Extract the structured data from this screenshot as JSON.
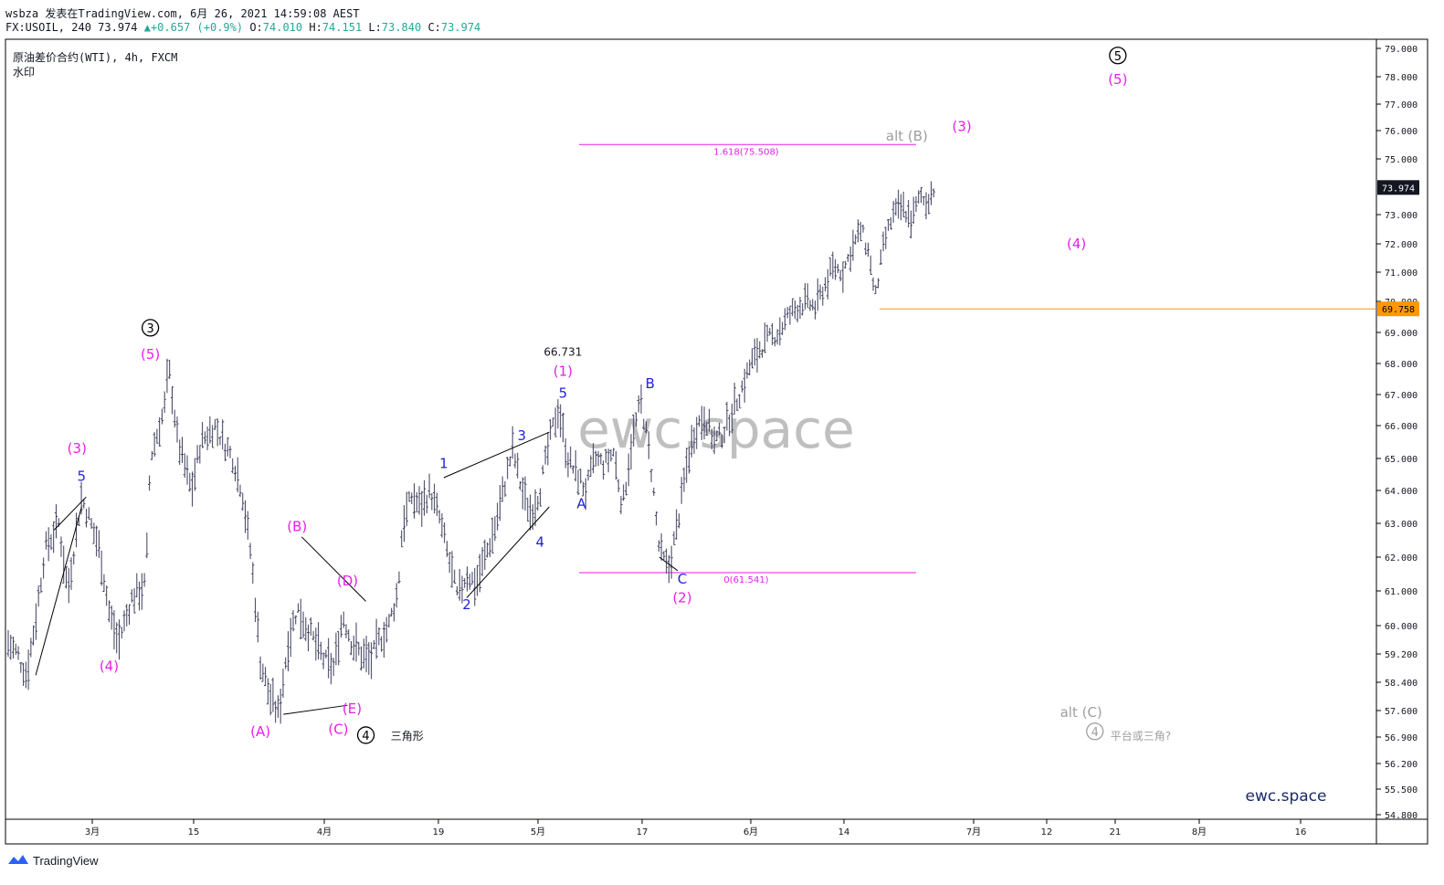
{
  "header": {
    "line1": "wsbza 发表在TradingView.com, 6月 26, 2021 14:59:08 AEST",
    "symbol_prefix": "FX:USOIL, 240 73.974 ",
    "change": "▲+0.657 (+0.9%)",
    "o_label": " O:",
    "o_value": "74.010",
    "h_label": " H:",
    "h_value": "74.151",
    "l_label": " L:",
    "l_value": "73.840",
    "c_label": " C:",
    "c_value": "73.974"
  },
  "symbol_title": "原油差价合约(WTI), 4h, FXCM",
  "watermark_label": "水印",
  "watermark_text": "ewc.space",
  "brand_text": "ewc.space",
  "footer": {
    "logo_text": "TradingView"
  },
  "colors": {
    "magenta": "#e91ee9",
    "blue": "#1f1fdd",
    "gray": "#9e9e9e",
    "orange": "#ff9800",
    "candle": "#3d3d5c"
  },
  "price_tags": {
    "last": "73.974",
    "level": "69.758"
  },
  "fib": {
    "upper_label": "1.618(75.508)",
    "upper_value": 75.508,
    "lower_label": "0(61.541)",
    "lower_value": 61.541
  },
  "chart_data": {
    "type": "ohlc",
    "y_ticks": [
      "79.000",
      "78.000",
      "77.000",
      "76.000",
      "75.000",
      "73.000",
      "72.000",
      "71.000",
      "70.000",
      "69.000",
      "68.000",
      "67.000",
      "66.000",
      "65.000",
      "64.000",
      "63.000",
      "62.000",
      "61.000",
      "60.000",
      "59.200",
      "58.400",
      "57.600",
      "56.900",
      "56.200",
      "55.500",
      "54.800"
    ],
    "x_ticks": [
      "3月",
      "15",
      "4月",
      "19",
      "5月",
      "17",
      "6月",
      "14",
      "7月",
      "12",
      "21",
      "8月",
      "16"
    ],
    "price_path": [
      [
        0,
        59.5
      ],
      [
        2,
        59.2
      ],
      [
        4,
        58.6
      ],
      [
        6,
        60.2
      ],
      [
        8,
        62.2
      ],
      [
        11,
        63.0
      ],
      [
        13,
        61.0
      ],
      [
        16,
        63.8
      ],
      [
        18,
        63.0
      ],
      [
        20,
        62.2
      ],
      [
        22,
        60.4
      ],
      [
        24,
        59.5
      ],
      [
        27,
        60.8
      ],
      [
        30,
        61.2
      ],
      [
        31,
        65.0
      ],
      [
        34,
        66.5
      ],
      [
        35,
        67.9
      ],
      [
        37,
        65.5
      ],
      [
        40,
        64.0
      ],
      [
        42,
        65.5
      ],
      [
        45,
        66.0
      ],
      [
        47,
        65.5
      ],
      [
        49,
        65.0
      ],
      [
        51,
        64.0
      ],
      [
        53,
        62.0
      ],
      [
        55,
        59.0
      ],
      [
        57,
        58.0
      ],
      [
        59,
        57.5
      ],
      [
        61,
        59.5
      ],
      [
        63,
        60.5
      ],
      [
        65,
        60.0
      ],
      [
        67,
        59.5
      ],
      [
        69,
        59.0
      ],
      [
        71,
        58.8
      ],
      [
        73,
        60.3
      ],
      [
        75,
        59.5
      ],
      [
        77,
        59.2
      ],
      [
        79,
        59.0
      ],
      [
        81,
        59.6
      ],
      [
        83,
        60.0
      ],
      [
        85,
        61.0
      ],
      [
        86,
        63.0
      ],
      [
        88,
        63.8
      ],
      [
        90,
        63.5
      ],
      [
        92,
        64.0
      ],
      [
        94,
        63.2
      ],
      [
        96,
        62.0
      ],
      [
        98,
        60.8
      ],
      [
        100,
        61.5
      ],
      [
        102,
        61.2
      ],
      [
        104,
        62.0
      ],
      [
        106,
        62.8
      ],
      [
        108,
        64.0
      ],
      [
        110,
        65.3
      ],
      [
        112,
        64.0
      ],
      [
        114,
        63.3
      ],
      [
        116,
        64.0
      ],
      [
        118,
        65.5
      ],
      [
        120,
        66.6
      ],
      [
        122,
        65.0
      ],
      [
        124,
        64.5
      ],
      [
        126,
        64.0
      ],
      [
        128,
        65.0
      ],
      [
        130,
        64.8
      ],
      [
        132,
        65.2
      ],
      [
        134,
        63.5
      ],
      [
        136,
        65.5
      ],
      [
        138,
        66.8
      ],
      [
        140,
        65.0
      ],
      [
        142,
        62.2
      ],
      [
        144,
        61.6
      ],
      [
        146,
        63.0
      ],
      [
        148,
        64.8
      ],
      [
        150,
        66.0
      ],
      [
        152,
        66.3
      ],
      [
        154,
        65.5
      ],
      [
        156,
        65.8
      ],
      [
        158,
        66.5
      ],
      [
        160,
        67.2
      ],
      [
        162,
        68.0
      ],
      [
        164,
        68.5
      ],
      [
        166,
        68.8
      ],
      [
        168,
        69.0
      ],
      [
        170,
        69.5
      ],
      [
        172,
        69.8
      ],
      [
        174,
        70.0
      ],
      [
        176,
        69.8
      ],
      [
        178,
        70.5
      ],
      [
        180,
        71.2
      ],
      [
        182,
        71.0
      ],
      [
        184,
        71.8
      ],
      [
        186,
        72.5
      ],
      [
        188,
        71.5
      ],
      [
        189,
        70.0
      ],
      [
        191,
        72.0
      ],
      [
        193,
        73.0
      ],
      [
        195,
        73.3
      ],
      [
        197,
        72.8
      ],
      [
        199,
        73.7
      ],
      [
        200,
        73.4
      ],
      [
        202,
        73.97
      ]
    ]
  },
  "labels": [
    {
      "text": "5",
      "c": "blue",
      "bx": 16,
      "y": 64.45
    },
    {
      "text": "(3)",
      "c": "magenta",
      "bx": 15,
      "y": 65.3
    },
    {
      "text": "(4)",
      "c": "magenta",
      "bx": 22,
      "y": 58.85
    },
    {
      "text": "(5)",
      "c": "magenta",
      "bx": 31,
      "y": 68.3
    },
    {
      "text": "(B)",
      "c": "magenta",
      "bx": 63,
      "y": 62.9
    },
    {
      "text": "(D)",
      "c": "magenta",
      "bx": 74,
      "y": 61.3
    },
    {
      "text": "(E)",
      "c": "magenta",
      "bx": 75,
      "y": 57.65
    },
    {
      "text": "(A)",
      "c": "magenta",
      "bx": 55,
      "y": 57.05
    },
    {
      "text": "(C)",
      "c": "magenta",
      "bx": 72,
      "y": 57.1
    },
    {
      "text": "三角形",
      "c": "black",
      "bx": 87,
      "y": 56.95,
      "small": true
    },
    {
      "text": "1",
      "c": "blue",
      "bx": 95,
      "y": 64.85
    },
    {
      "text": "2",
      "c": "blue",
      "bx": 100,
      "y": 60.6
    },
    {
      "text": "3",
      "c": "blue",
      "bx": 112,
      "y": 65.7
    },
    {
      "text": "4",
      "c": "blue",
      "bx": 116,
      "y": 62.45
    },
    {
      "text": "5",
      "c": "blue",
      "bx": 121,
      "y": 67.05
    },
    {
      "text": "66.731",
      "c": "black",
      "bx": 121,
      "y": 68.4,
      "small": true
    },
    {
      "text": "(1)",
      "c": "magenta",
      "bx": 121,
      "y": 67.75
    },
    {
      "text": "A",
      "c": "blue",
      "bx": 125,
      "y": 63.6
    },
    {
      "text": "B",
      "c": "blue",
      "bx": 140,
      "y": 67.35
    },
    {
      "text": "C",
      "c": "blue",
      "bx": 147,
      "y": 61.35
    },
    {
      "text": "(2)",
      "c": "magenta",
      "bx": 147,
      "y": 60.8
    },
    {
      "text": "(3)",
      "c": "magenta",
      "bx": 208,
      "y": 76.15
    },
    {
      "text": "(4)",
      "c": "magenta",
      "bx": 233,
      "y": 72.0
    },
    {
      "text": "(5)",
      "c": "magenta",
      "bx": 242,
      "y": 77.9
    },
    {
      "text": "alt (B)",
      "c": "gray",
      "bx": 196,
      "y": 75.8
    },
    {
      "text": "alt (C)",
      "c": "gray",
      "bx": 234,
      "y": 57.55
    },
    {
      "text": "平台或三角?",
      "c": "gray",
      "bx": 247,
      "y": 56.95,
      "small": true
    }
  ],
  "circle_labels": [
    {
      "text": "3",
      "bx": 31,
      "y": 69.15
    },
    {
      "text": "4",
      "bx": 78,
      "y": 56.95
    },
    {
      "text": "5",
      "bx": 242,
      "y": 78.75
    },
    {
      "text": "4",
      "bx": 237,
      "y": 57.05,
      "gray": true
    }
  ],
  "trendlines": [
    {
      "a": [
        10,
        62.8
      ],
      "b": [
        17,
        63.8
      ]
    },
    {
      "a": [
        6,
        58.6
      ],
      "b": [
        16,
        63.5
      ]
    },
    {
      "a": [
        64,
        62.6
      ],
      "b": [
        78,
        60.7
      ]
    },
    {
      "a": [
        60,
        57.5
      ],
      "b": [
        74,
        57.75
      ]
    },
    {
      "a": [
        95,
        64.4
      ],
      "b": [
        118,
        65.8
      ]
    },
    {
      "a": [
        100,
        60.8
      ],
      "b": [
        118,
        63.5
      ]
    },
    {
      "a": [
        142,
        62.0
      ],
      "b": [
        146,
        61.6
      ]
    }
  ]
}
